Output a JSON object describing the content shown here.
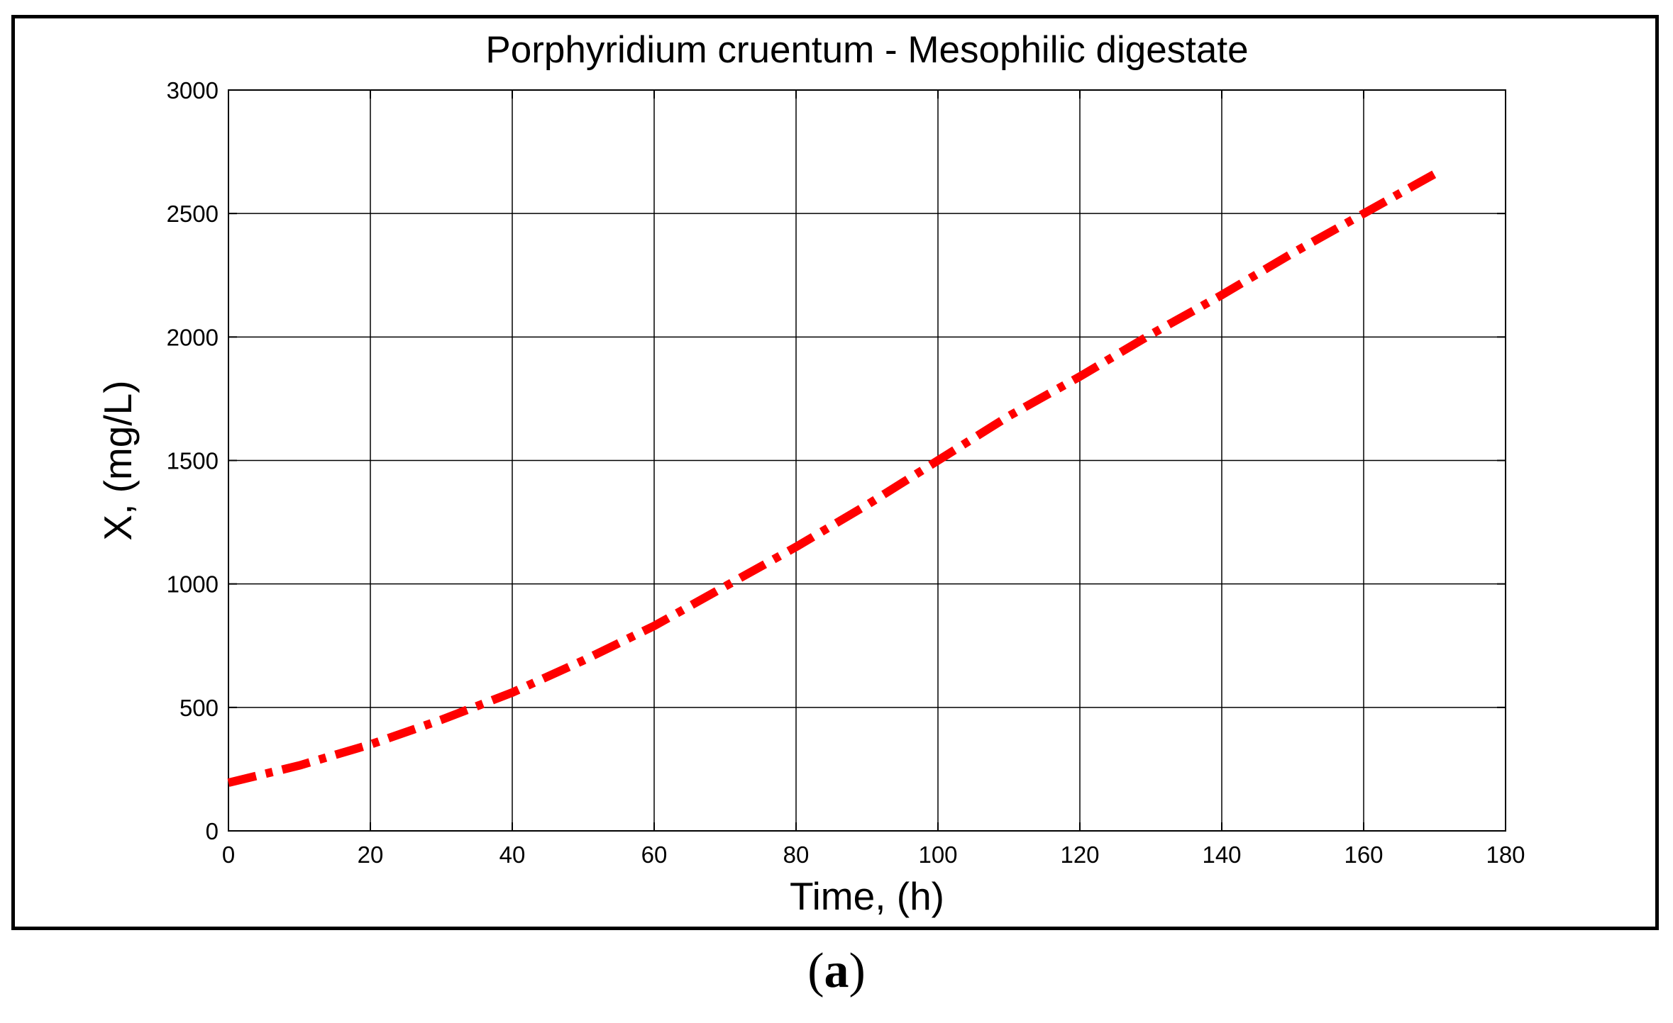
{
  "chart_data": {
    "type": "line",
    "title": "Porphyridium cruentum - Mesophilic digestate",
    "xlabel": "Time, (h)",
    "ylabel": "X, (mg/L)",
    "xlim": [
      0,
      180
    ],
    "ylim": [
      0,
      3000
    ],
    "xticks": [
      0,
      20,
      40,
      60,
      80,
      100,
      120,
      140,
      160,
      180
    ],
    "yticks": [
      0,
      500,
      1000,
      1500,
      2000,
      2500,
      3000
    ],
    "xtick_labels": [
      "0",
      "20",
      "40",
      "60",
      "80",
      "100",
      "120",
      "140",
      "160",
      "180"
    ],
    "ytick_labels": [
      "0",
      "500",
      "1000",
      "1500",
      "2000",
      "2500",
      "3000"
    ],
    "grid": true,
    "legend": false,
    "series": [
      {
        "color": "#ff0000",
        "line_style": "dash-dot",
        "x": [
          0,
          10,
          20,
          30,
          40,
          50,
          60,
          70,
          80,
          90,
          100,
          110,
          120,
          130,
          140,
          150,
          160,
          170
        ],
        "y": [
          195,
          265,
          350,
          450,
          560,
          690,
          830,
          990,
          1150,
          1320,
          1500,
          1680,
          1840,
          2010,
          2170,
          2340,
          2500,
          2660
        ]
      }
    ]
  },
  "panel_label": {
    "open": "(",
    "letter": "a",
    "close": ")"
  }
}
